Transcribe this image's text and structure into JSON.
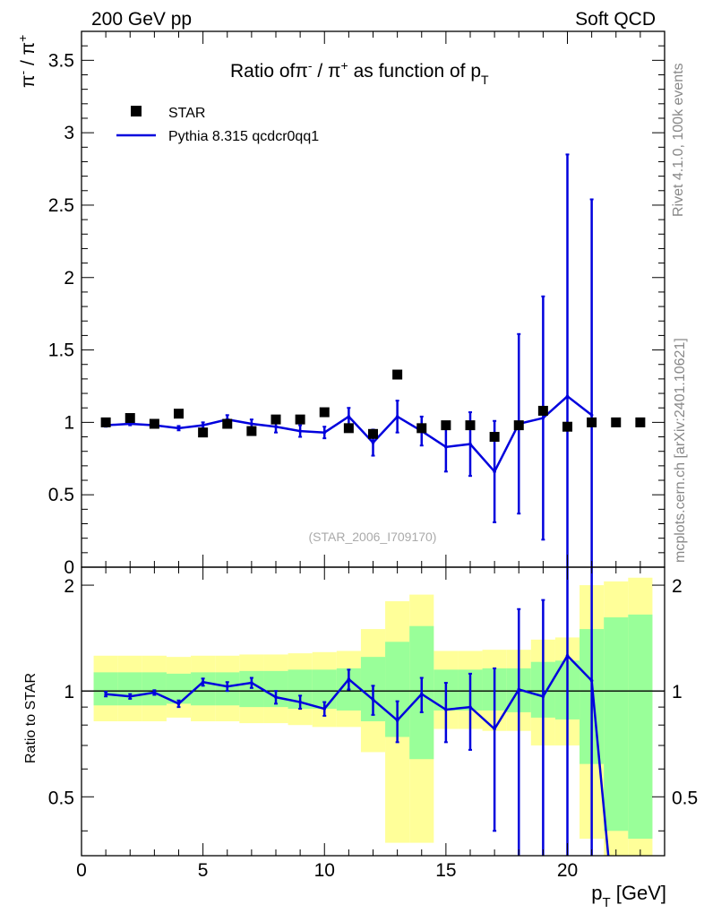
{
  "header": {
    "left": "200 GeV pp",
    "right": "Soft QCD"
  },
  "side_labels": {
    "rivet": "Rivet 4.1.0,  100k events",
    "mcplots": "mcplots.cern.ch [arXiv:2401.10621]"
  },
  "chart_data": [
    {
      "type": "scatter",
      "panel": "main",
      "title_prefix": "Ratio of",
      "title_suffix": " as function of",
      "title_pt": "p",
      "title_pt_sub": "T",
      "ylabel": "π⁻ / π⁺",
      "ylim": [
        0,
        3.7
      ],
      "yticks": [
        "0",
        "0.5",
        "1",
        "1.5",
        "2",
        "2.5",
        "3",
        "3.5"
      ],
      "ytick_values": [
        0,
        0.5,
        1,
        1.5,
        2,
        2.5,
        3,
        3.5
      ],
      "xlim": [
        0,
        24
      ],
      "legend": {
        "placement": "top-left",
        "entries": [
          "STAR",
          "Pythia 8.315 qcdcr0qq1"
        ]
      },
      "watermark": "(STAR_2006_I709170)",
      "series": [
        {
          "name": "STAR",
          "style": "black-square-markers",
          "x": [
            1,
            2,
            3,
            4,
            5,
            6,
            7,
            8,
            9,
            10,
            11,
            12,
            13,
            14,
            15,
            16,
            17,
            18,
            19,
            20,
            21,
            22,
            23
          ],
          "y": [
            1.0,
            1.03,
            0.99,
            1.06,
            0.93,
            0.99,
            0.94,
            1.02,
            1.02,
            1.07,
            0.96,
            0.92,
            1.33,
            0.96,
            0.98,
            0.98,
            0.9,
            0.98,
            1.08,
            0.97,
            1.0,
            1.0,
            1.0
          ]
        },
        {
          "name": "Pythia 8.315 qcdcr0qq1",
          "style": "blue-line-with-errorbars",
          "x": [
            1,
            2,
            3,
            4,
            5,
            6,
            7,
            8,
            9,
            10,
            11,
            12,
            13,
            14,
            15,
            16,
            17,
            18,
            19,
            20,
            21
          ],
          "y": [
            0.98,
            0.99,
            0.98,
            0.96,
            0.98,
            1.02,
            0.99,
            0.97,
            0.94,
            0.93,
            1.04,
            0.86,
            1.04,
            0.94,
            0.83,
            0.85,
            0.66,
            0.99,
            1.03,
            1.18,
            1.05
          ],
          "err": [
            0.01,
            0.01,
            0.01,
            0.015,
            0.02,
            0.03,
            0.03,
            0.04,
            0.04,
            0.04,
            0.06,
            0.09,
            0.11,
            0.1,
            0.17,
            0.22,
            0.35,
            0.62,
            0.84,
            1.67,
            1.49
          ]
        }
      ]
    },
    {
      "type": "line",
      "panel": "ratio",
      "ylabel": "Ratio to STAR",
      "ylim": [
        0.34,
        2.25
      ],
      "yticks": [
        "0.5",
        "1",
        "2"
      ],
      "ytick_values": [
        0.5,
        1,
        2
      ],
      "xlabel": "p",
      "xlabel_sub": "T",
      "xlabel_unit": " [GeV]",
      "xlim": [
        0,
        24
      ],
      "xticks": [
        "0",
        "5",
        "10",
        "15",
        "20"
      ],
      "xtick_values": [
        0,
        5,
        10,
        15,
        20
      ],
      "reference_line": 1,
      "band_edges": [
        0.5,
        1.5,
        2.5,
        3.5,
        4.5,
        5.5,
        6.5,
        7.5,
        8.5,
        9.5,
        10.5,
        11.5,
        12.5,
        13.5,
        14.5,
        15.5,
        16.5,
        17.5,
        18.5,
        19.5,
        20.5,
        21.5,
        22.5,
        23.5
      ],
      "yellow_band": {
        "lo": [
          0.82,
          0.82,
          0.82,
          0.84,
          0.82,
          0.82,
          0.81,
          0.81,
          0.8,
          0.79,
          0.79,
          0.67,
          0.37,
          0.37,
          0.78,
          0.78,
          0.77,
          0.77,
          0.7,
          0.7,
          0.38,
          0.3,
          0.3
        ],
        "hi": [
          1.26,
          1.26,
          1.26,
          1.25,
          1.26,
          1.26,
          1.27,
          1.27,
          1.28,
          1.29,
          1.3,
          1.5,
          1.8,
          1.88,
          1.3,
          1.3,
          1.31,
          1.31,
          1.4,
          1.42,
          2.0,
          2.05,
          2.1
        ]
      },
      "green_band": {
        "lo": [
          0.91,
          0.91,
          0.91,
          0.92,
          0.91,
          0.91,
          0.9,
          0.9,
          0.89,
          0.89,
          0.88,
          0.82,
          0.74,
          0.64,
          0.88,
          0.88,
          0.88,
          0.87,
          0.84,
          0.83,
          0.62,
          0.4,
          0.38
        ],
        "hi": [
          1.13,
          1.13,
          1.13,
          1.12,
          1.13,
          1.13,
          1.14,
          1.14,
          1.15,
          1.15,
          1.16,
          1.25,
          1.38,
          1.53,
          1.15,
          1.15,
          1.16,
          1.16,
          1.21,
          1.22,
          1.5,
          1.62,
          1.65
        ]
      },
      "series": [
        {
          "name": "Pythia 8.315 qcdcr0qq1 / STAR",
          "x": [
            1,
            2,
            3,
            4,
            5,
            6,
            7,
            8,
            9,
            10,
            11,
            12,
            13,
            14,
            15,
            16,
            17,
            18,
            19,
            20,
            21,
            22
          ],
          "y": [
            0.98,
            0.965,
            0.99,
            0.92,
            1.06,
            1.03,
            1.055,
            0.96,
            0.93,
            0.89,
            1.08,
            0.945,
            0.825,
            0.98,
            0.885,
            0.9,
            0.78,
            1.01,
            0.965,
            1.26,
            1.07,
            0.2
          ],
          "err": [
            0.015,
            0.015,
            0.015,
            0.02,
            0.025,
            0.03,
            0.035,
            0.04,
            0.04,
            0.04,
            0.07,
            0.09,
            0.11,
            0.11,
            0.17,
            0.22,
            0.38,
            0.7,
            0.85,
            1.7,
            1.5,
            0
          ]
        }
      ]
    }
  ]
}
